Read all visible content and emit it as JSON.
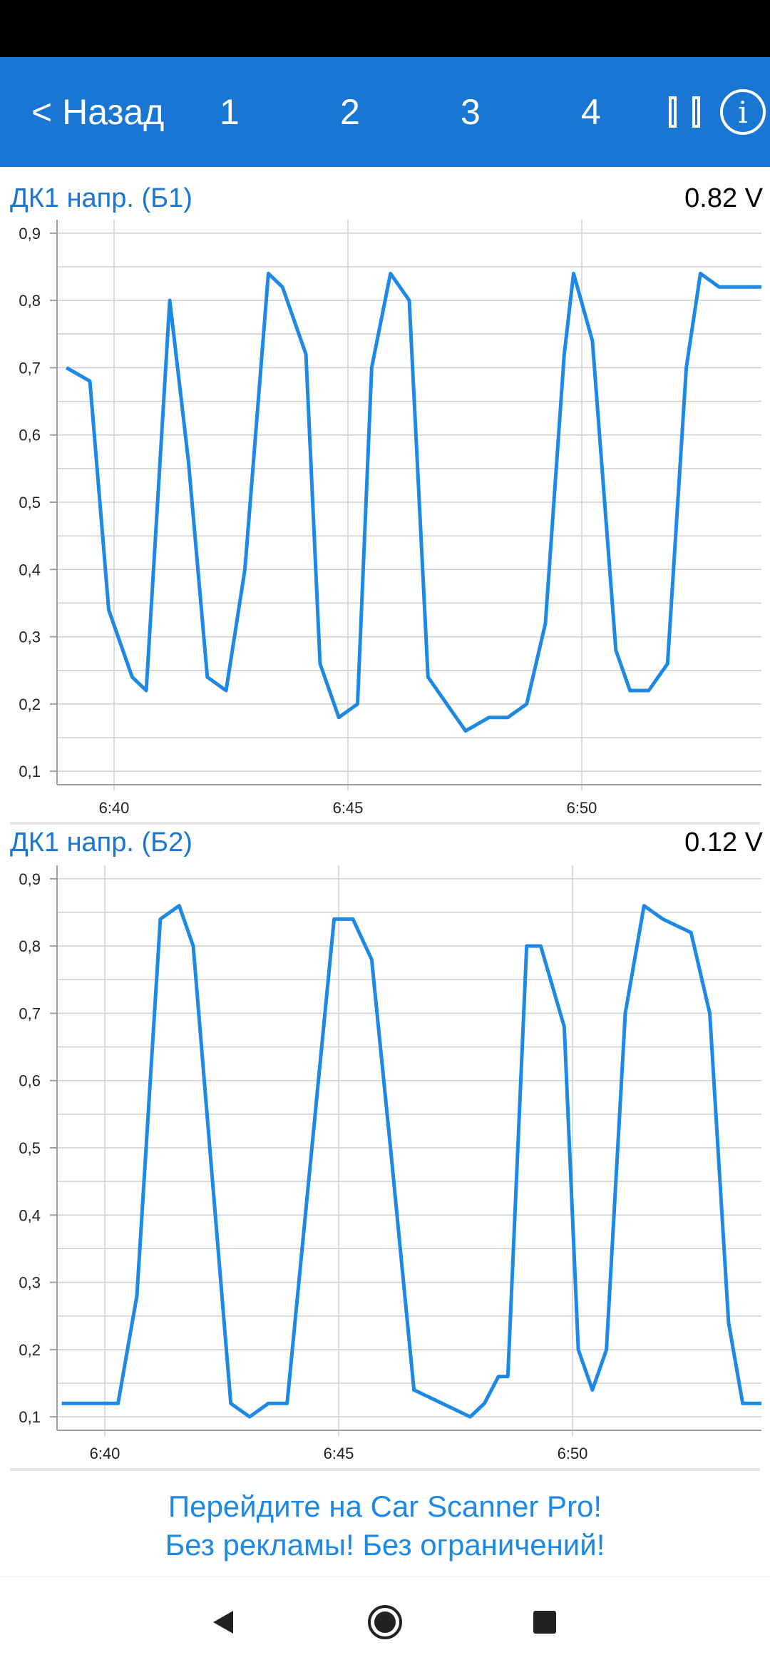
{
  "app_bar": {
    "back_label": "< Назад",
    "tabs": [
      {
        "label": "1"
      },
      {
        "label": "2"
      },
      {
        "label": "3"
      },
      {
        "label": "4"
      }
    ],
    "info_label": "i",
    "color": "#1976D2"
  },
  "charts": [
    {
      "title": "ДК1 напр. (Б1)",
      "current_value": "0.82  V"
    },
    {
      "title": "ДК1 напр. (Б2)",
      "current_value": "0.12  V"
    }
  ],
  "chart_data": [
    {
      "type": "line",
      "title": "ДК1 напр. (Б1)",
      "unit": "V",
      "x_ticks": [
        "6:40",
        "6:45",
        "6:50"
      ],
      "y_ticks": [
        "0,9",
        "0,8",
        "0,7",
        "0,6",
        "0,5",
        "0,4",
        "0,3",
        "0,2",
        "0,1"
      ],
      "xlim": [
        6.39,
        6.54
      ],
      "ylim": [
        0.08,
        0.92
      ],
      "series_color": "#1E88E5",
      "series": [
        {
          "x": [
            6.392,
            6.397,
            6.401,
            6.406,
            6.409,
            6.414,
            6.418,
            6.422,
            6.426,
            6.43,
            6.435,
            6.438,
            6.443,
            6.446,
            6.45,
            6.454,
            6.457,
            6.461,
            6.465,
            6.469,
            6.477,
            6.482,
            6.486,
            6.49,
            6.494,
            6.498,
            6.5,
            6.504,
            6.509,
            6.512,
            6.516,
            6.52,
            6.524,
            6.527,
            6.531,
            6.537,
            6.54
          ],
          "y": [
            0.7,
            0.68,
            0.34,
            0.24,
            0.22,
            0.8,
            0.56,
            0.24,
            0.22,
            0.4,
            0.84,
            0.82,
            0.72,
            0.26,
            0.18,
            0.2,
            0.7,
            0.84,
            0.8,
            0.24,
            0.16,
            0.18,
            0.18,
            0.2,
            0.32,
            0.72,
            0.84,
            0.74,
            0.28,
            0.22,
            0.22,
            0.26,
            0.7,
            0.84,
            0.82,
            0.82,
            0.82
          ]
        }
      ]
    },
    {
      "type": "line",
      "title": "ДК1 напр. (Б2)",
      "unit": "V",
      "x_ticks": [
        "6:40",
        "6:45",
        "6:50"
      ],
      "y_ticks": [
        "0,9",
        "0,8",
        "0,7",
        "0,6",
        "0,5",
        "0,4",
        "0,3",
        "0,2",
        "0,1"
      ],
      "xlim": [
        6.39,
        6.54
      ],
      "ylim": [
        0.08,
        0.92
      ],
      "series_color": "#1E88E5",
      "series": [
        {
          "x": [
            6.391,
            6.394,
            6.399,
            6.403,
            6.407,
            6.412,
            6.416,
            6.419,
            6.427,
            6.431,
            6.435,
            6.439,
            6.449,
            6.453,
            6.457,
            6.461,
            6.466,
            6.472,
            6.478,
            6.481,
            6.484,
            6.486,
            6.49,
            6.493,
            6.498,
            6.501,
            6.504,
            6.507,
            6.511,
            6.515,
            6.519,
            6.525,
            6.529,
            6.533,
            6.536,
            6.54
          ],
          "y": [
            0.12,
            0.12,
            0.12,
            0.12,
            0.28,
            0.84,
            0.86,
            0.8,
            0.12,
            0.1,
            0.12,
            0.12,
            0.84,
            0.84,
            0.78,
            0.5,
            0.14,
            0.12,
            0.1,
            0.12,
            0.16,
            0.16,
            0.8,
            0.8,
            0.68,
            0.2,
            0.14,
            0.2,
            0.7,
            0.86,
            0.84,
            0.82,
            0.7,
            0.24,
            0.12,
            0.12
          ]
        }
      ]
    }
  ],
  "promo": {
    "line1": "Перейдите на Car Scanner Pro!",
    "line2": "Без рекламы! Без ограничений!",
    "color": "#1E88E5"
  },
  "nav_bar": {
    "back_icon": "triangle-back-icon",
    "home_icon": "circle-home-icon",
    "recents_icon": "square-recents-icon"
  }
}
